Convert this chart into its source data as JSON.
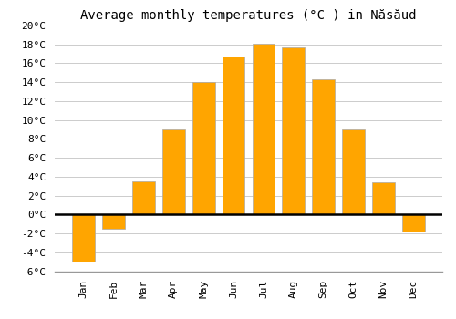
{
  "title": "Average monthly temperatures (°C ) in Năsăud",
  "months": [
    "Jan",
    "Feb",
    "Mar",
    "Apr",
    "May",
    "Jun",
    "Jul",
    "Aug",
    "Sep",
    "Oct",
    "Nov",
    "Dec"
  ],
  "temperatures": [
    -5,
    -1.5,
    3.5,
    9,
    14,
    16.7,
    18.1,
    17.7,
    14.3,
    9,
    3.4,
    -1.8
  ],
  "bar_color": "#FFA500",
  "bar_edge_color": "#AAAAAA",
  "ylim": [
    -6,
    20
  ],
  "yticks": [
    -6,
    -4,
    -2,
    0,
    2,
    4,
    6,
    8,
    10,
    12,
    14,
    16,
    18,
    20
  ],
  "ytick_labels": [
    "-6°C",
    "-4°C",
    "-2°C",
    "0°C",
    "2°C",
    "4°C",
    "6°C",
    "8°C",
    "10°C",
    "12°C",
    "14°C",
    "16°C",
    "18°C",
    "20°C"
  ],
  "background_color": "#ffffff",
  "grid_color": "#cccccc",
  "font_family": "monospace",
  "title_fontsize": 10,
  "tick_fontsize": 8,
  "bar_width": 0.75
}
